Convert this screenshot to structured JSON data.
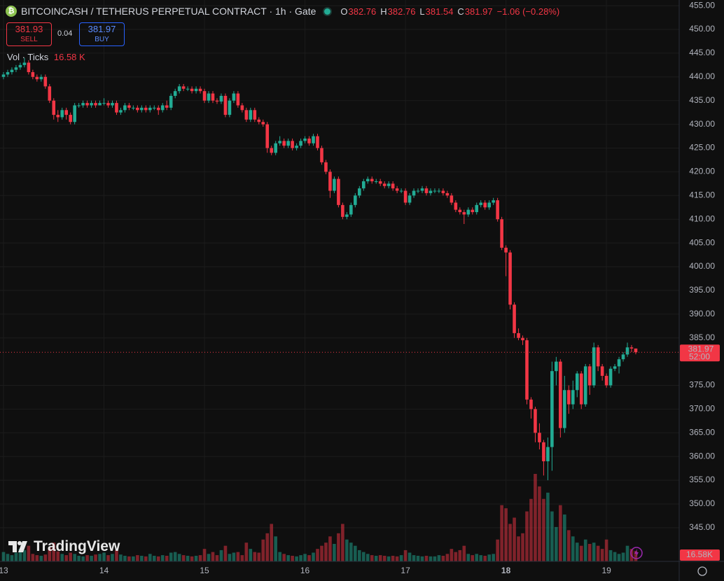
{
  "chart_data": {
    "type": "candlestick",
    "title": "BITCOINCASH / TETHERUS PERPETUAL CONTRACT · 1h · Gate",
    "ohlc_labels": [
      "O",
      "H",
      "L",
      "C"
    ],
    "change": "−1.06 (−0.28%)",
    "quote": {
      "sell": 381.93,
      "sell_label": "SELL",
      "spread": 0.04,
      "buy": 381.97,
      "buy_label": "BUY"
    },
    "volume_title": "Vol · Ticks",
    "volume_label": "16.58 K",
    "volume_tag": "16.58K",
    "countdown": "52:00",
    "watermark": "TradingView",
    "up_color": "#22ab94",
    "down_color": "#f23645",
    "grid": true,
    "ylim": [
      337.9,
      456.2
    ],
    "yticks": [
      {
        "value": 455,
        "label": "455.00"
      },
      {
        "value": 450,
        "label": "450.00"
      },
      {
        "value": 445,
        "label": "445.00"
      },
      {
        "value": 440,
        "label": "440.00"
      },
      {
        "value": 435,
        "label": "435.00"
      },
      {
        "value": 430,
        "label": "430.00"
      },
      {
        "value": 425,
        "label": "425.00"
      },
      {
        "value": 420,
        "label": "420.00"
      },
      {
        "value": 415,
        "label": "415.00"
      },
      {
        "value": 410,
        "label": "410.00"
      },
      {
        "value": 405,
        "label": "405.00"
      },
      {
        "value": 400,
        "label": "400.00"
      },
      {
        "value": 395,
        "label": "395.00"
      },
      {
        "value": 390,
        "label": "390.00"
      },
      {
        "value": 385,
        "label": "385.00"
      },
      {
        "value": 375,
        "label": "375.00"
      },
      {
        "value": 370,
        "label": "370.00"
      },
      {
        "value": 365,
        "label": "365.00"
      },
      {
        "value": 360,
        "label": "360.00"
      },
      {
        "value": 355,
        "label": "355.00"
      },
      {
        "value": 350,
        "label": "350.00"
      },
      {
        "value": 345,
        "label": "345.00"
      }
    ],
    "categories": [
      "13",
      null,
      null,
      null,
      null,
      null,
      null,
      null,
      null,
      null,
      null,
      null,
      null,
      null,
      null,
      null,
      null,
      null,
      null,
      null,
      null,
      null,
      null,
      null,
      "14",
      null,
      null,
      null,
      null,
      null,
      null,
      null,
      null,
      null,
      null,
      null,
      null,
      null,
      null,
      null,
      null,
      null,
      null,
      null,
      null,
      null,
      null,
      null,
      "15",
      null,
      null,
      null,
      null,
      null,
      null,
      null,
      null,
      null,
      null,
      null,
      null,
      null,
      null,
      null,
      null,
      null,
      null,
      null,
      null,
      null,
      null,
      null,
      "16",
      null,
      null,
      null,
      null,
      null,
      null,
      null,
      null,
      null,
      null,
      null,
      null,
      null,
      null,
      null,
      null,
      null,
      null,
      null,
      null,
      null,
      null,
      null,
      "17",
      null,
      null,
      null,
      null,
      null,
      null,
      null,
      null,
      null,
      null,
      null,
      null,
      null,
      null,
      null,
      null,
      null,
      null,
      null,
      null,
      null,
      null,
      null,
      "18",
      null,
      null,
      null,
      null,
      null,
      null,
      null,
      null,
      null,
      null,
      null,
      null,
      null,
      null,
      null,
      null,
      null,
      null,
      null,
      null,
      null,
      null,
      null,
      "19",
      null,
      null,
      null,
      null,
      null,
      null,
      null
    ],
    "open": [
      440,
      440.5,
      441,
      441.5,
      442,
      442.5,
      443,
      441,
      440,
      439.5,
      440,
      438,
      435,
      432,
      431.5,
      433,
      432,
      430.5,
      434,
      434,
      434.5,
      434,
      434.5,
      434,
      434.5,
      434.5,
      434,
      434.5,
      432.5,
      433,
      434,
      433.5,
      433.5,
      433,
      433.5,
      433,
      433.5,
      433.5,
      433,
      434,
      433.5,
      436,
      437,
      438,
      437.5,
      437.5,
      437,
      437.5,
      437,
      435,
      436.5,
      435,
      434.8,
      436,
      432,
      435,
      436.5,
      434,
      433,
      431,
      433,
      431,
      430.5,
      430,
      425,
      424,
      426,
      426.5,
      425.5,
      426.5,
      425,
      425.5,
      426.5,
      427,
      426,
      427.5,
      425,
      422,
      420,
      416,
      418.5,
      413,
      410.5,
      411,
      413,
      415,
      416.5,
      418,
      418.5,
      418,
      418,
      417.5,
      417,
      417.5,
      416.5,
      416,
      416,
      413.5,
      415,
      416,
      416,
      416.5,
      415.5,
      416,
      416,
      416,
      415.5,
      415,
      413.5,
      412,
      411.5,
      411,
      412,
      411.5,
      413,
      413.5,
      412.5,
      413.5,
      414,
      410,
      404,
      403,
      392,
      386,
      385,
      384.5,
      372,
      370,
      365,
      363,
      359,
      362,
      378,
      380,
      366,
      374,
      371,
      374,
      377.5,
      371,
      379,
      375,
      383,
      379,
      377,
      375,
      378.5,
      379,
      380.5,
      381.5,
      383,
      382.76
    ],
    "high": [
      441,
      441.5,
      442,
      442.5,
      443,
      444,
      443.5,
      441.5,
      440.5,
      440.5,
      440.5,
      438.5,
      435.5,
      433,
      433.5,
      433.5,
      432.5,
      434.5,
      434.5,
      435,
      435,
      435,
      435,
      435,
      435.5,
      435,
      435,
      435,
      433.5,
      434.5,
      434.5,
      434,
      434,
      434,
      434,
      434,
      434,
      434,
      434.5,
      435,
      436.5,
      437.5,
      438.5,
      438.5,
      438,
      438,
      438,
      438,
      437.5,
      437,
      437,
      435.5,
      436.5,
      436.5,
      435.5,
      437,
      437,
      434.5,
      433.5,
      433.5,
      433.5,
      431.5,
      431,
      430.5,
      425.5,
      426.5,
      427.5,
      427,
      427,
      427,
      426,
      427,
      427.5,
      427.5,
      428,
      428,
      425.5,
      422.5,
      420.5,
      419,
      419,
      413.5,
      411.5,
      413.5,
      415.5,
      417,
      418.5,
      419,
      419,
      418.5,
      418.5,
      418,
      418,
      418,
      417,
      416.5,
      416.5,
      415.5,
      416.5,
      416.5,
      417,
      417,
      416.5,
      416.5,
      416.5,
      416.5,
      416,
      415.5,
      414,
      412.5,
      412,
      412.5,
      412.5,
      413.5,
      414,
      414,
      414,
      414.5,
      414.5,
      410.5,
      404.5,
      403.5,
      392.5,
      387,
      385.5,
      385,
      372.5,
      370.5,
      367,
      363.5,
      364,
      380,
      381,
      380.5,
      377,
      375,
      376,
      378,
      378,
      379.5,
      379.5,
      384,
      383.5,
      379.5,
      377.5,
      379,
      379.5,
      381,
      382,
      384,
      383.5,
      382.76
    ],
    "low": [
      439.5,
      440,
      440.5,
      441,
      441.5,
      442,
      440.5,
      439.5,
      439,
      439,
      437.5,
      434.5,
      431,
      430.5,
      431,
      431,
      430,
      430,
      433.5,
      433.5,
      433.5,
      433.5,
      433.5,
      434,
      434,
      433.5,
      433.5,
      432,
      432,
      432.5,
      433,
      433,
      432.5,
      432.5,
      432.5,
      432.5,
      433,
      432,
      432.5,
      433,
      433,
      435.5,
      436.5,
      437,
      437,
      436.5,
      436.5,
      436.5,
      434.5,
      434.5,
      434.5,
      434.3,
      434.3,
      431.5,
      431.5,
      434.5,
      433.5,
      432.5,
      430.5,
      430.5,
      430.5,
      430,
      429.5,
      424,
      423.5,
      423.5,
      425.5,
      425,
      425,
      424.5,
      424.5,
      425,
      426,
      425.5,
      425.5,
      424.5,
      421.5,
      419.5,
      414.5,
      415.5,
      412.5,
      410,
      410,
      410.5,
      412.5,
      414.5,
      416,
      417.5,
      417.5,
      417.5,
      417,
      416.5,
      416.5,
      416,
      415.5,
      415.5,
      413,
      413,
      414.5,
      415.5,
      415.5,
      415,
      415,
      415.5,
      415.5,
      415,
      414.5,
      413,
      411.5,
      411,
      409,
      410.5,
      411,
      411,
      412.5,
      412,
      412,
      413,
      409.5,
      403.5,
      398,
      391,
      385,
      384.5,
      383.5,
      371,
      368,
      363,
      361.5,
      356,
      355,
      357,
      375,
      364,
      365,
      369,
      370,
      372.5,
      370,
      370.5,
      373,
      374.5,
      378,
      376,
      374.5,
      374.5,
      378,
      377.5,
      380,
      381,
      382,
      381.54
    ],
    "close": [
      440.5,
      441,
      441.5,
      442,
      442.5,
      443,
      441,
      440,
      439.5,
      440,
      438,
      435,
      432,
      431.5,
      433,
      432,
      430.5,
      434,
      434,
      434.5,
      434,
      434.5,
      434,
      434.5,
      434.5,
      434,
      434.5,
      432.5,
      433,
      434,
      433.5,
      433.5,
      433,
      433.5,
      433,
      433.5,
      433.5,
      433,
      434,
      433.5,
      436,
      437,
      438,
      437.5,
      437.5,
      437,
      437.5,
      437,
      435,
      436.5,
      435,
      434.8,
      436,
      432,
      435,
      436.5,
      434,
      433,
      431,
      433,
      431,
      430.5,
      430,
      425,
      424,
      426,
      426.5,
      425.5,
      426.5,
      425,
      425.5,
      426.5,
      427,
      426,
      427.5,
      425,
      422,
      420,
      416,
      418.5,
      413,
      410.5,
      411,
      413,
      415,
      416.5,
      418,
      418.5,
      418,
      418,
      417.5,
      417,
      417.5,
      416.5,
      416,
      416,
      413.5,
      415,
      416,
      416,
      416.5,
      415.5,
      416,
      416,
      416,
      415.5,
      415,
      413.5,
      412,
      411.5,
      411,
      412,
      411.5,
      413,
      413.5,
      412.5,
      413.5,
      414,
      410,
      404,
      403,
      392,
      386,
      385,
      384.5,
      372,
      370,
      365,
      363,
      359,
      362,
      378,
      380,
      366,
      374,
      371,
      374,
      377.5,
      371,
      379,
      375,
      383,
      379,
      377,
      375,
      378.5,
      379,
      380.5,
      381.5,
      383,
      382.76,
      381.97
    ],
    "volume": [
      15000,
      12000,
      10000,
      14000,
      20000,
      18000,
      25000,
      12000,
      10000,
      9000,
      11000,
      22000,
      30000,
      16000,
      12000,
      10000,
      14000,
      12000,
      9000,
      8000,
      10000,
      9000,
      11000,
      12000,
      14000,
      10000,
      12000,
      18000,
      11000,
      9000,
      8000,
      8000,
      10000,
      9000,
      8000,
      12000,
      9000,
      8000,
      10000,
      9000,
      14000,
      15000,
      12000,
      10000,
      9000,
      8000,
      9000,
      10000,
      20000,
      12000,
      15000,
      10000,
      18000,
      25000,
      12000,
      14000,
      15000,
      10000,
      30000,
      20000,
      15000,
      14000,
      35000,
      45000,
      60000,
      40000,
      15000,
      12000,
      10000,
      9000,
      8000,
      10000,
      12000,
      10000,
      14000,
      20000,
      25000,
      30000,
      40000,
      28000,
      45000,
      60000,
      35000,
      30000,
      25000,
      18000,
      15000,
      12000,
      10000,
      9000,
      10000,
      9000,
      8000,
      9000,
      8000,
      10000,
      18000,
      14000,
      10000,
      9000,
      8000,
      9000,
      8000,
      8000,
      10000,
      9000,
      12000,
      20000,
      15000,
      18000,
      25000,
      12000,
      10000,
      12000,
      10000,
      9000,
      11000,
      12000,
      35000,
      90000,
      85000,
      60000,
      70000,
      40000,
      45000,
      80000,
      100000,
      140000,
      120000,
      100000,
      110000,
      80000,
      55000,
      90000,
      75000,
      50000,
      40000,
      30000,
      25000,
      35000,
      28000,
      30000,
      25000,
      20000,
      35000,
      18000,
      15000,
      12000,
      14000,
      25000,
      20000,
      16580
    ]
  }
}
